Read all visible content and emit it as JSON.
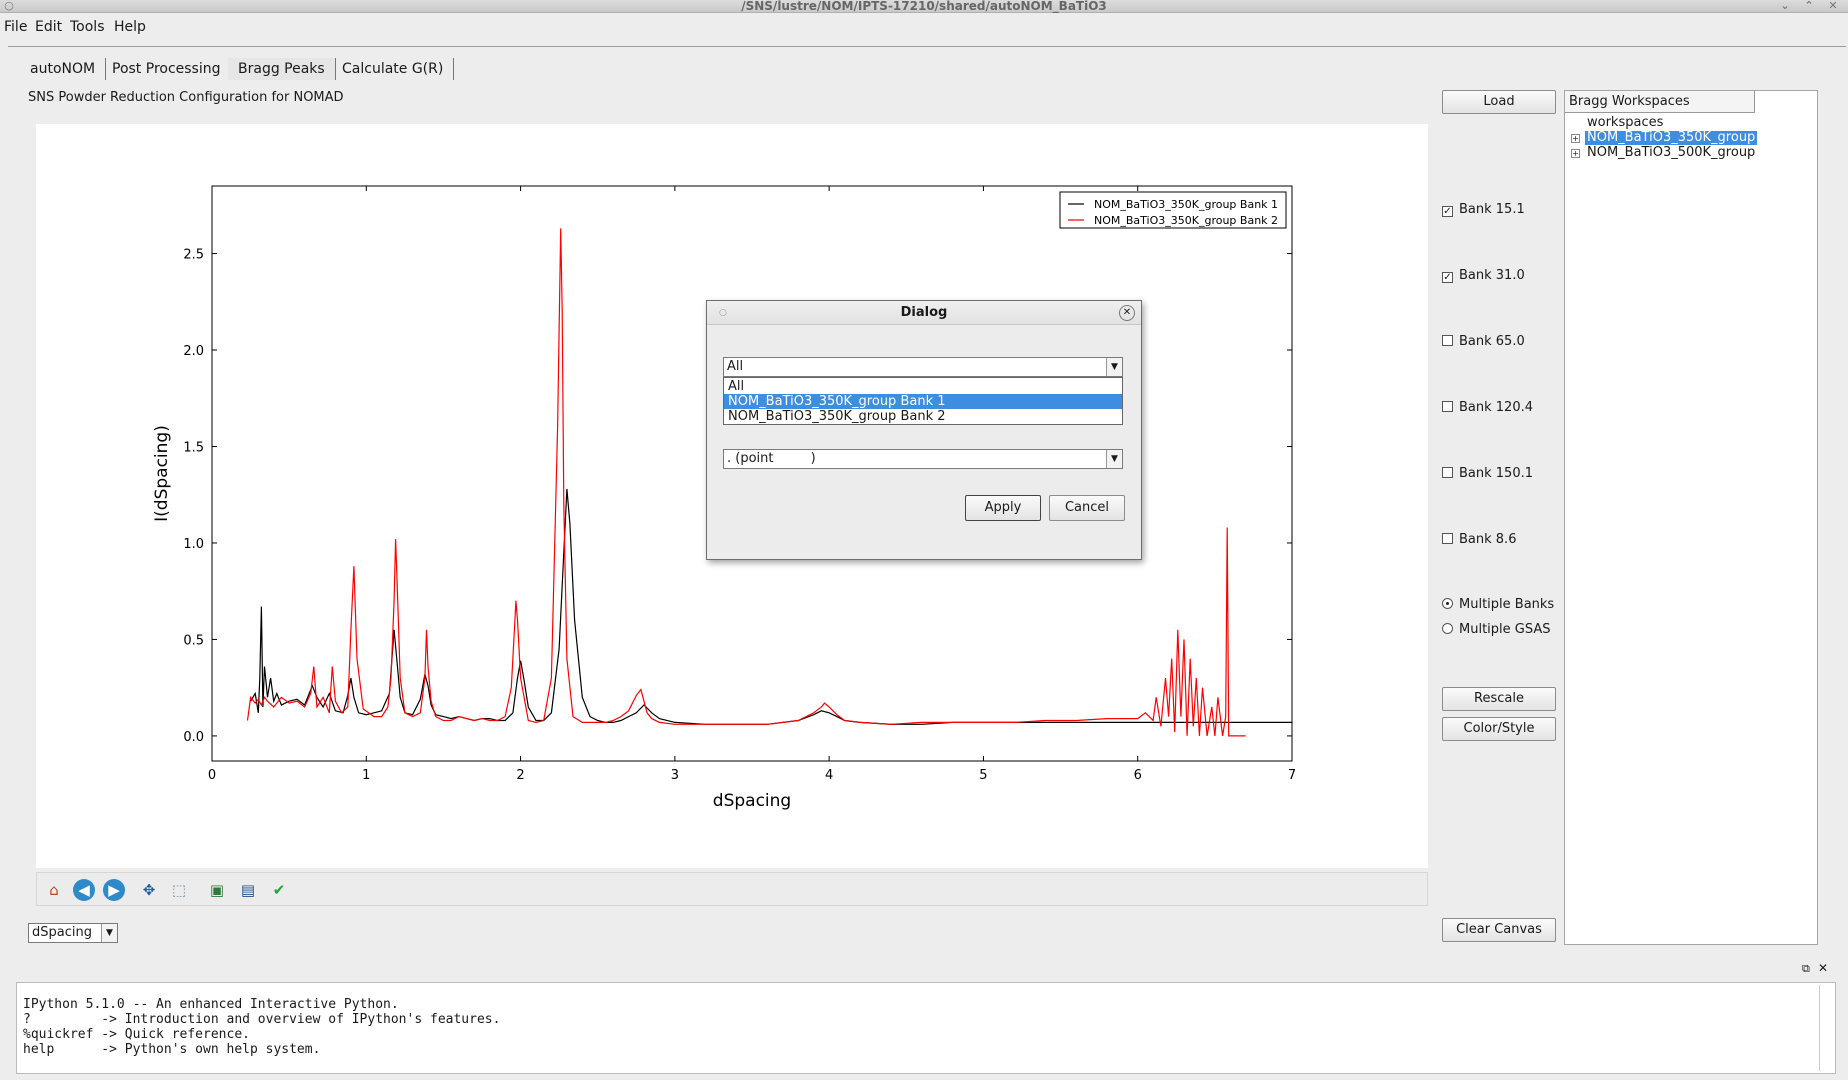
{
  "window": {
    "title": "/SNS/lustre/NOM/IPTS-17210/shared/autoNOM_BaTiO3"
  },
  "menu": [
    "File",
    "Edit",
    "Tools",
    "Help"
  ],
  "tabs": [
    "autoNOM",
    "Post Processing",
    "Bragg Peaks",
    "Calculate G(R)"
  ],
  "active_tab": "Bragg Peaks",
  "subtitle": "SNS Powder Reduction Configuration for NOMAD",
  "right_panel": {
    "load_label": "Load",
    "banks": [
      {
        "label": "Bank 15.1",
        "checked": true
      },
      {
        "label": "Bank 31.0",
        "checked": true
      },
      {
        "label": "Bank 65.0",
        "checked": false
      },
      {
        "label": "Bank 120.4",
        "checked": false
      },
      {
        "label": "Bank 150.1",
        "checked": false
      },
      {
        "label": "Bank 8.6",
        "checked": false
      }
    ],
    "modes": [
      {
        "label": "Multiple Banks",
        "selected": true
      },
      {
        "label": "Multiple GSAS",
        "selected": false
      }
    ],
    "rescale_label": "Rescale",
    "colorstyle_label": "Color/Style",
    "clear_label": "Clear Canvas"
  },
  "workspaces": {
    "header": "Bragg Workspaces",
    "root": "workspaces",
    "items": [
      {
        "label": "NOM_BaTiO3_350K_group",
        "selected": true
      },
      {
        "label": "NOM_BaTiO3_500K_group",
        "selected": false
      }
    ]
  },
  "unit_select": {
    "value": "dSpacing"
  },
  "toolbar_icons": [
    "home-icon",
    "back-icon",
    "forward-icon",
    "pan-icon",
    "zoom-icon",
    "configure-subplots-icon",
    "save-icon",
    "check-icon"
  ],
  "dialog": {
    "title": "Dialog",
    "line_select": "All",
    "line_options": [
      "All",
      "NOM_BaTiO3_350K_group Bank 1",
      "NOM_BaTiO3_350K_group Bank 2"
    ],
    "highlighted_option": 1,
    "marker_select": ". (point         )",
    "apply_label": "Apply",
    "cancel_label": "Cancel"
  },
  "console": {
    "lines": [
      "IPython 5.1.0 -- An enhanced Interactive Python.",
      "?         -> Introduction and overview of IPython's features.",
      "%quickref -> Quick reference.",
      "help      -> Python's own help system."
    ]
  },
  "chart_data": {
    "type": "line",
    "title": "",
    "xlabel": "dSpacing",
    "ylabel": "I(dSpacing)",
    "xlim": [
      0,
      7
    ],
    "ylim": [
      -0.13,
      2.85
    ],
    "xticks": [
      0,
      1,
      2,
      3,
      4,
      5,
      6,
      7
    ],
    "yticks": [
      0.0,
      0.5,
      1.0,
      1.5,
      2.0,
      2.5
    ],
    "legend_position": "top-right",
    "series": [
      {
        "name": "NOM_BaTiO3_350K_group Bank 1",
        "color": "#000000",
        "x": [
          0.25,
          0.28,
          0.3,
          0.31,
          0.32,
          0.33,
          0.34,
          0.36,
          0.38,
          0.4,
          0.42,
          0.45,
          0.5,
          0.55,
          0.6,
          0.65,
          0.68,
          0.72,
          0.76,
          0.8,
          0.85,
          0.88,
          0.9,
          0.92,
          0.95,
          1.0,
          1.05,
          1.1,
          1.15,
          1.18,
          1.2,
          1.22,
          1.25,
          1.3,
          1.35,
          1.38,
          1.4,
          1.42,
          1.45,
          1.5,
          1.55,
          1.6,
          1.65,
          1.7,
          1.75,
          1.8,
          1.85,
          1.9,
          1.95,
          1.98,
          2.0,
          2.02,
          2.05,
          2.1,
          2.15,
          2.2,
          2.25,
          2.28,
          2.3,
          2.32,
          2.35,
          2.4,
          2.45,
          2.5,
          2.55,
          2.6,
          2.65,
          2.7,
          2.75,
          2.8,
          2.85,
          2.9,
          3.0,
          3.2,
          3.4,
          3.6,
          3.8,
          3.9,
          3.95,
          4.0,
          4.05,
          4.1,
          4.2,
          4.4,
          4.6,
          4.8,
          5.0,
          5.2,
          5.4,
          5.6,
          5.8,
          6.0,
          6.2,
          6.4,
          6.6,
          6.8,
          7.0
        ],
        "y": [
          0.18,
          0.22,
          0.12,
          0.3,
          0.67,
          0.15,
          0.36,
          0.2,
          0.3,
          0.18,
          0.22,
          0.16,
          0.18,
          0.19,
          0.16,
          0.26,
          0.2,
          0.15,
          0.22,
          0.13,
          0.12,
          0.21,
          0.3,
          0.2,
          0.12,
          0.11,
          0.12,
          0.13,
          0.22,
          0.55,
          0.38,
          0.2,
          0.12,
          0.11,
          0.19,
          0.32,
          0.26,
          0.16,
          0.11,
          0.1,
          0.09,
          0.1,
          0.09,
          0.08,
          0.09,
          0.09,
          0.08,
          0.08,
          0.12,
          0.3,
          0.39,
          0.3,
          0.15,
          0.08,
          0.08,
          0.12,
          0.45,
          0.95,
          1.28,
          1.1,
          0.6,
          0.2,
          0.1,
          0.08,
          0.07,
          0.07,
          0.08,
          0.1,
          0.12,
          0.16,
          0.12,
          0.09,
          0.07,
          0.06,
          0.06,
          0.06,
          0.08,
          0.11,
          0.13,
          0.12,
          0.1,
          0.08,
          0.07,
          0.06,
          0.06,
          0.07,
          0.07,
          0.07,
          0.07,
          0.07,
          0.07,
          0.07,
          0.07,
          0.07,
          0.07,
          0.07,
          0.07
        ]
      },
      {
        "name": "NOM_BaTiO3_350K_group Bank 2",
        "color": "#ff0000",
        "x": [
          0.23,
          0.25,
          0.28,
          0.3,
          0.32,
          0.34,
          0.36,
          0.4,
          0.45,
          0.5,
          0.55,
          0.6,
          0.64,
          0.66,
          0.68,
          0.72,
          0.76,
          0.78,
          0.8,
          0.84,
          0.88,
          0.9,
          0.92,
          0.94,
          0.98,
          1.05,
          1.1,
          1.14,
          1.16,
          1.18,
          1.19,
          1.2,
          1.22,
          1.25,
          1.3,
          1.35,
          1.38,
          1.39,
          1.4,
          1.42,
          1.45,
          1.5,
          1.55,
          1.6,
          1.65,
          1.7,
          1.75,
          1.8,
          1.85,
          1.9,
          1.94,
          1.96,
          1.97,
          1.98,
          2.0,
          2.05,
          2.1,
          2.15,
          2.2,
          2.24,
          2.26,
          2.27,
          2.28,
          2.3,
          2.34,
          2.4,
          2.45,
          2.5,
          2.55,
          2.6,
          2.65,
          2.7,
          2.75,
          2.78,
          2.8,
          2.82,
          2.85,
          2.9,
          3.0,
          3.2,
          3.4,
          3.6,
          3.8,
          3.9,
          3.95,
          3.97,
          4.0,
          4.05,
          4.1,
          4.2,
          4.4,
          4.6,
          4.8,
          5.0,
          5.2,
          5.4,
          5.6,
          5.8,
          6.0,
          6.05,
          6.1,
          6.12,
          6.15,
          6.18,
          6.2,
          6.22,
          6.24,
          6.26,
          6.28,
          6.3,
          6.32,
          6.34,
          6.36,
          6.38,
          6.4,
          6.42,
          6.45,
          6.48,
          6.5,
          6.52,
          6.55,
          6.57,
          6.58,
          6.59,
          6.6,
          6.62,
          6.65,
          6.7
        ],
        "y": [
          0.08,
          0.2,
          0.17,
          0.19,
          0.16,
          0.2,
          0.18,
          0.15,
          0.2,
          0.17,
          0.18,
          0.15,
          0.22,
          0.36,
          0.15,
          0.2,
          0.12,
          0.36,
          0.18,
          0.12,
          0.15,
          0.55,
          0.88,
          0.4,
          0.14,
          0.1,
          0.1,
          0.15,
          0.3,
          0.7,
          1.02,
          0.8,
          0.3,
          0.12,
          0.1,
          0.12,
          0.3,
          0.55,
          0.36,
          0.18,
          0.1,
          0.08,
          0.08,
          0.1,
          0.09,
          0.08,
          0.09,
          0.08,
          0.08,
          0.1,
          0.25,
          0.55,
          0.7,
          0.6,
          0.3,
          0.08,
          0.07,
          0.08,
          0.3,
          1.6,
          2.63,
          2.2,
          1.2,
          0.4,
          0.1,
          0.07,
          0.07,
          0.07,
          0.07,
          0.08,
          0.1,
          0.13,
          0.21,
          0.24,
          0.18,
          0.12,
          0.09,
          0.07,
          0.06,
          0.06,
          0.06,
          0.06,
          0.08,
          0.12,
          0.15,
          0.17,
          0.15,
          0.11,
          0.08,
          0.07,
          0.06,
          0.07,
          0.07,
          0.07,
          0.07,
          0.08,
          0.08,
          0.09,
          0.09,
          0.12,
          0.08,
          0.2,
          0.05,
          0.3,
          0.1,
          0.4,
          0.02,
          0.55,
          0.1,
          0.5,
          0.0,
          0.4,
          0.05,
          0.3,
          0.0,
          0.25,
          0.0,
          0.15,
          0.0,
          0.2,
          0.0,
          0.1,
          1.08,
          0.0,
          0.0,
          0.0,
          0.0,
          0.0
        ]
      }
    ]
  }
}
